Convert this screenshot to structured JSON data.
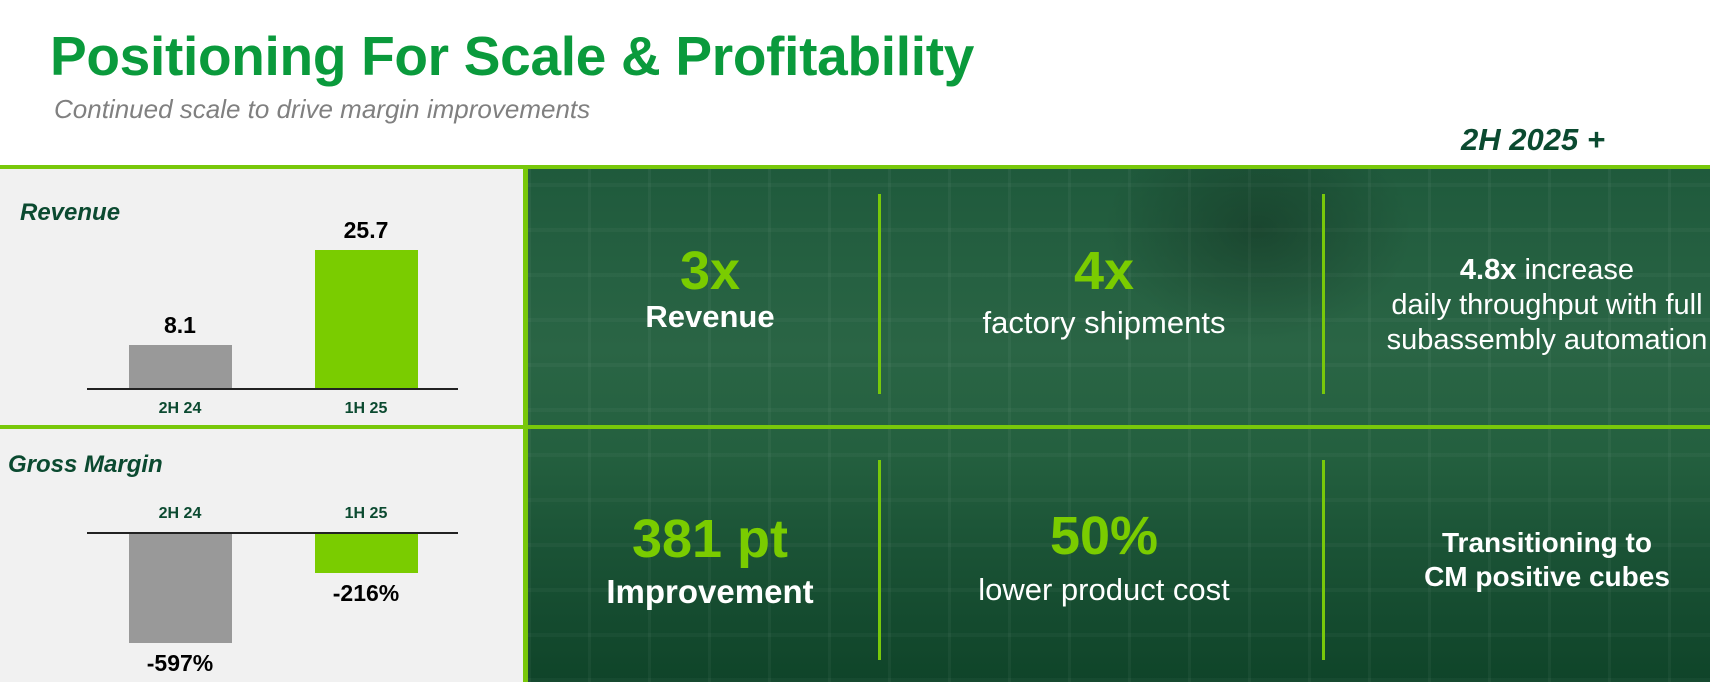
{
  "header": {
    "title": "Positioning For Scale & Profitability",
    "subtitle": "Continued scale to drive margin improvements",
    "period": "2H 2025 +"
  },
  "colors": {
    "brand_green": "#0a9a3c",
    "accent_green": "#7acc00",
    "dark_green": "#0b4a30",
    "gray_bar": "#999999"
  },
  "chart_data": [
    {
      "type": "bar",
      "title": "Revenue",
      "categories": [
        "2H 24",
        "1H 25"
      ],
      "values": [
        8.1,
        25.7
      ],
      "value_labels": [
        "8.1",
        "25.7"
      ],
      "bar_colors": [
        "#999999",
        "#7acc00"
      ]
    },
    {
      "type": "bar",
      "title": "Gross Margin",
      "categories": [
        "2H 24",
        "1H 25"
      ],
      "values": [
        -597,
        -216
      ],
      "value_labels": [
        "-597%",
        "-216%"
      ],
      "bar_colors": [
        "#999999",
        "#7acc00"
      ]
    }
  ],
  "stats": {
    "top": [
      {
        "big": "3x",
        "label": "Revenue"
      },
      {
        "big": "4x",
        "label": "factory shipments"
      },
      {
        "big": "4.8x",
        "label_inline": "increase",
        "line2": "daily throughput with full",
        "line3": "subassembly automation"
      }
    ],
    "bottom": [
      {
        "big": "381 pt",
        "label": "Improvement"
      },
      {
        "big": "50%",
        "label": "lower product cost"
      },
      {
        "line1": "Transitioning to",
        "line2": "CM positive cubes"
      }
    ]
  }
}
